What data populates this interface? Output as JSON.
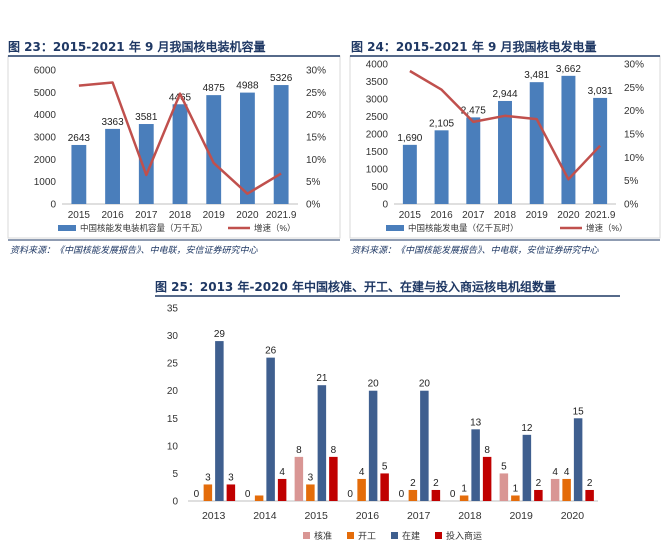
{
  "page": {
    "source1": "资料来源：《中国核能发展报告》、中电联，安信证券研究中心",
    "source2": "资料来源：《中国核能发展报告》、中电联，安信证券研究中心"
  },
  "colors": {
    "bar_blue": "#4a7ebb",
    "line_red": "#c0504d",
    "title_navy": "#1f3864",
    "approved_pink": "#d99694",
    "started_orange": "#e46c0a",
    "building_navy": "#3f5f8f",
    "operating_red": "#c00000"
  },
  "chart_data": [
    {
      "type": "bar",
      "title": "图 23：2015-2021 年 9 月我国核电装机容量",
      "categories": [
        "2015",
        "2016",
        "2017",
        "2018",
        "2019",
        "2020",
        "2021.9"
      ],
      "series": [
        {
          "name": "中国核能发电装机容量（万千瓦）",
          "type": "bar",
          "axis": "left",
          "values": [
            2643,
            3363,
            3581,
            4465,
            4875,
            4988,
            5326
          ],
          "labels": [
            "2643",
            "3363",
            "3581",
            "4465",
            "4875",
            "4988",
            "5326"
          ]
        },
        {
          "name": "增速（%）",
          "type": "line",
          "axis": "right",
          "values": [
            26.5,
            27.2,
            6.5,
            24.7,
            9.2,
            2.3,
            6.8
          ]
        }
      ],
      "ylim_left": [
        0,
        6000
      ],
      "yticks_left": [
        "0",
        "1000",
        "2000",
        "3000",
        "4000",
        "5000",
        "6000"
      ],
      "ylim_right": [
        0,
        30
      ],
      "yticks_right": [
        "0%",
        "5%",
        "10%",
        "15%",
        "20%",
        "25%",
        "30%"
      ],
      "legend_position": "bottom"
    },
    {
      "type": "bar",
      "title": "图 24：2015-2021 年 9 月我国核电发电量",
      "categories": [
        "2015",
        "2016",
        "2017",
        "2018",
        "2019",
        "2020",
        "2021.9"
      ],
      "series": [
        {
          "name": "中国核能发电量（亿千瓦时）",
          "type": "bar",
          "axis": "left",
          "values": [
            1690,
            2105,
            2475,
            2944,
            3481,
            3662,
            3031
          ],
          "labels": [
            "1,690",
            "2,105",
            "2,475",
            "2,944",
            "3,481",
            "3,662",
            "3,031"
          ]
        },
        {
          "name": "增速（%）",
          "type": "line",
          "axis": "right",
          "values": [
            28.5,
            24.5,
            17.6,
            18.9,
            18.2,
            5.3,
            12.5
          ]
        }
      ],
      "ylim_left": [
        0,
        4000
      ],
      "yticks_left": [
        "0",
        "500",
        "1000",
        "1500",
        "2000",
        "2500",
        "3000",
        "3500",
        "4000"
      ],
      "ylim_right": [
        0,
        30
      ],
      "yticks_right": [
        "0%",
        "5%",
        "10%",
        "15%",
        "20%",
        "25%",
        "30%"
      ],
      "legend_position": "bottom"
    },
    {
      "type": "bar",
      "title": "图 25：2013 年-2020 年中国核准、开工、在建与投入商运核电机组数量",
      "categories": [
        "2013",
        "2014",
        "2015",
        "2016",
        "2017",
        "2018",
        "2019",
        "2020"
      ],
      "series": [
        {
          "name": "核准",
          "values": [
            0,
            0,
            8,
            0,
            0,
            0,
            5,
            4
          ]
        },
        {
          "name": "开工",
          "values": [
            3,
            1,
            3,
            4,
            2,
            1,
            1,
            4
          ]
        },
        {
          "name": "在建",
          "values": [
            29,
            26,
            21,
            20,
            20,
            13,
            12,
            15
          ]
        },
        {
          "name": "投入商运",
          "values": [
            3,
            4,
            8,
            5,
            2,
            8,
            2,
            2
          ]
        }
      ],
      "value_labels": [
        [
          "0",
          "3",
          "29",
          "3"
        ],
        [
          "0",
          "",
          "26",
          "4"
        ],
        [
          "8",
          "3",
          "21",
          "8"
        ],
        [
          "0",
          "4",
          "20",
          "5"
        ],
        [
          "0",
          "2",
          "20",
          "2"
        ],
        [
          "0",
          "1",
          "13",
          "8"
        ],
        [
          "5",
          "1",
          "12",
          "2"
        ],
        [
          "4",
          "4",
          "15",
          "2"
        ]
      ],
      "ylim": [
        0,
        35
      ],
      "yticks": [
        "0",
        "5",
        "10",
        "15",
        "20",
        "25",
        "30",
        "35"
      ],
      "legend_position": "bottom"
    }
  ]
}
